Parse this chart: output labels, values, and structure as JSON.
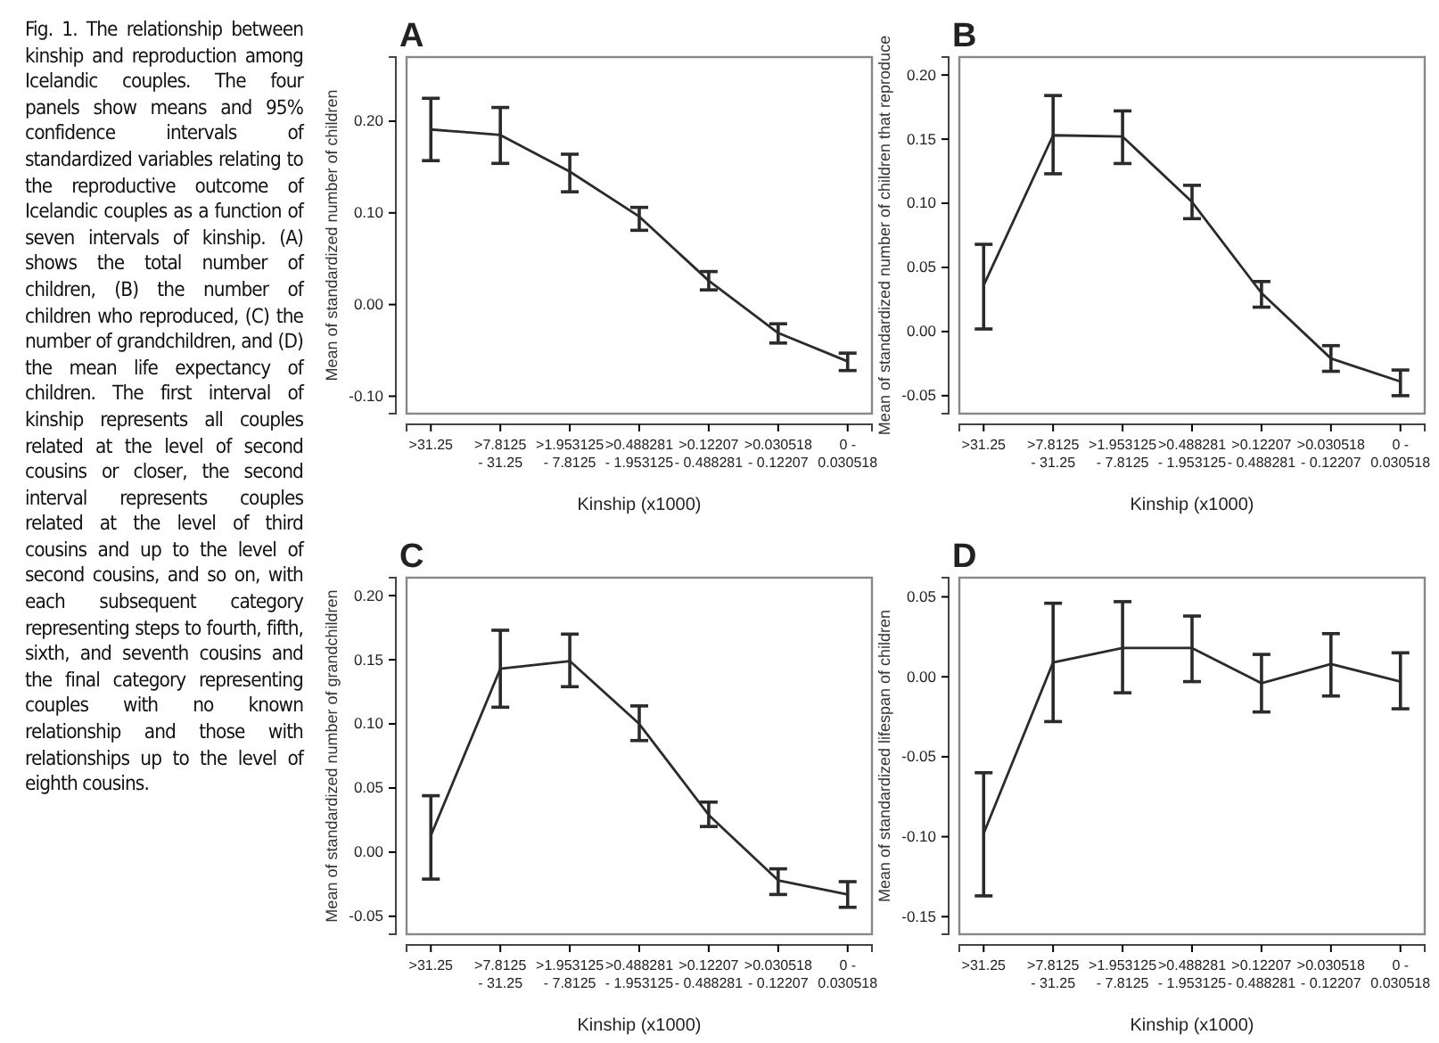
{
  "chart_data": [
    {
      "type": "other",
      "annotations": [
        "Fig. 1. The relationship between kinship and reproduction among Icelandic couples. The four panels show means and 95% confidence intervals of standardized variables relating to the reproductive outcome of Icelandic couples as a function of seven intervals of kinship. (A) shows the total number of children, (B) the number of children who reproduced, (C) the number of grandchildren, and (D) the mean life expectancy of children. The first interval of kinship represents all couples related at the level of second cousins or closer, the second interval represents couples related at the level of third cousins and up to the level of second cousins, and so on, with each subsequent category representing steps to fourth, fifth, sixth, and seventh cousins and the final category representing couples with no known relationship and those with relationships up to the level of eighth cousins."
      ]
    },
    {
      "type": "line",
      "title": "A",
      "xlabel": "Kinship (x1000)",
      "ylabel": "Mean of standardized number of children",
      "categories": [
        ">31.25",
        ">7.8125\n- 31.25",
        ">1.953125\n- 7.8125",
        ">0.488281\n- 1.953125",
        ">0.12207\n- 0.488281",
        ">0.030518\n- 0.12207",
        "0 -\n0.030518"
      ],
      "ylim": [
        -0.119,
        0.27
      ],
      "yticks": [
        {
          "value": -0.1,
          "label": "-0.10"
        },
        {
          "value": 0,
          "label": "0.00"
        },
        {
          "value": 0.1,
          "label": "0.10"
        },
        {
          "value": 0.2,
          "label": "0.20"
        }
      ],
      "series": [
        {
          "color": "#2b2b2b",
          "values": [
            0.191,
            0.185,
            0.145,
            0.096,
            0.026,
            -0.031,
            -0.062
          ],
          "errors": [
            [
              0.157,
              0.225
            ],
            [
              0.154,
              0.215
            ],
            [
              0.123,
              0.164
            ],
            [
              0.081,
              0.106
            ],
            [
              0.016,
              0.036
            ],
            [
              -0.042,
              -0.021
            ],
            [
              -0.072,
              -0.053
            ]
          ]
        }
      ]
    },
    {
      "type": "line",
      "title": "B",
      "xlabel": "Kinship (x1000)",
      "ylabel": "Mean of standardized number of children that reproduce",
      "categories": [
        ">31.25",
        ">7.8125\n- 31.25",
        ">1.953125\n- 7.8125",
        ">0.488281\n- 1.953125",
        ">0.12207\n- 0.488281",
        ">0.030518\n- 0.12207",
        "0 -\n0.030518"
      ],
      "ylim": [
        -0.064,
        0.214
      ],
      "yticks": [
        -0.05,
        {
          "value": 0,
          "label": "0.00"
        },
        0.05,
        {
          "value": 0.1,
          "label": "0.10"
        },
        0.15,
        {
          "value": 0.2,
          "label": "0.20"
        }
      ],
      "series": [
        {
          "color": "#2b2b2b",
          "values": [
            0.036,
            0.153,
            0.152,
            0.101,
            0.03,
            -0.021,
            -0.039
          ],
          "errors": [
            [
              0.002,
              0.068
            ],
            [
              0.123,
              0.184
            ],
            [
              0.131,
              0.172
            ],
            [
              0.088,
              0.114
            ],
            [
              0.019,
              0.039
            ],
            [
              -0.031,
              -0.011
            ],
            [
              -0.05,
              -0.03
            ]
          ]
        }
      ]
    },
    {
      "type": "line",
      "title": "C",
      "xlabel": "Kinship (x1000)",
      "ylabel": "Mean of standardized number of grandchildren",
      "categories": [
        ">31.25",
        ">7.8125\n- 31.25",
        ">1.953125\n- 7.8125",
        ">0.488281\n- 1.953125",
        ">0.12207\n- 0.488281",
        ">0.030518\n- 0.12207",
        "0 -\n0.030518"
      ],
      "ylim": [
        -0.064,
        0.214
      ],
      "yticks": [
        -0.05,
        {
          "value": 0,
          "label": "0.00"
        },
        0.05,
        {
          "value": 0.1,
          "label": "0.10"
        },
        0.15,
        {
          "value": 0.2,
          "label": "0.20"
        }
      ],
      "series": [
        {
          "color": "#2b2b2b",
          "values": [
            0.013,
            0.143,
            0.149,
            0.1,
            0.029,
            -0.022,
            -0.033
          ],
          "errors": [
            [
              -0.021,
              0.044
            ],
            [
              0.113,
              0.173
            ],
            [
              0.129,
              0.17
            ],
            [
              0.087,
              0.114
            ],
            [
              0.02,
              0.039
            ],
            [
              -0.033,
              -0.013
            ],
            [
              -0.043,
              -0.023
            ]
          ]
        }
      ]
    },
    {
      "type": "line",
      "title": "D",
      "xlabel": "Kinship (x1000)",
      "ylabel": "Mean of standardized lifespan of children",
      "categories": [
        ">31.25",
        ">7.8125\n- 31.25",
        ">1.953125\n- 7.8125",
        ">0.488281\n- 1.953125",
        ">0.12207\n- 0.488281",
        ">0.030518\n- 0.12207",
        "0 -\n0.030518"
      ],
      "ylim": [
        -0.161,
        0.062
      ],
      "yticks": [
        -0.15,
        {
          "value": -0.1,
          "label": "-0.10"
        },
        -0.05,
        {
          "value": 0,
          "label": "0.00"
        },
        0.05
      ],
      "series": [
        {
          "color": "#2b2b2b",
          "values": [
            -0.098,
            0.009,
            0.018,
            0.018,
            -0.004,
            0.008,
            -0.003
          ],
          "errors": [
            [
              -0.137,
              -0.06
            ],
            [
              -0.028,
              0.046
            ],
            [
              -0.01,
              0.047
            ],
            [
              -0.003,
              0.038
            ],
            [
              -0.022,
              0.014
            ],
            [
              -0.012,
              0.027
            ],
            [
              -0.02,
              0.015
            ]
          ]
        }
      ]
    }
  ]
}
